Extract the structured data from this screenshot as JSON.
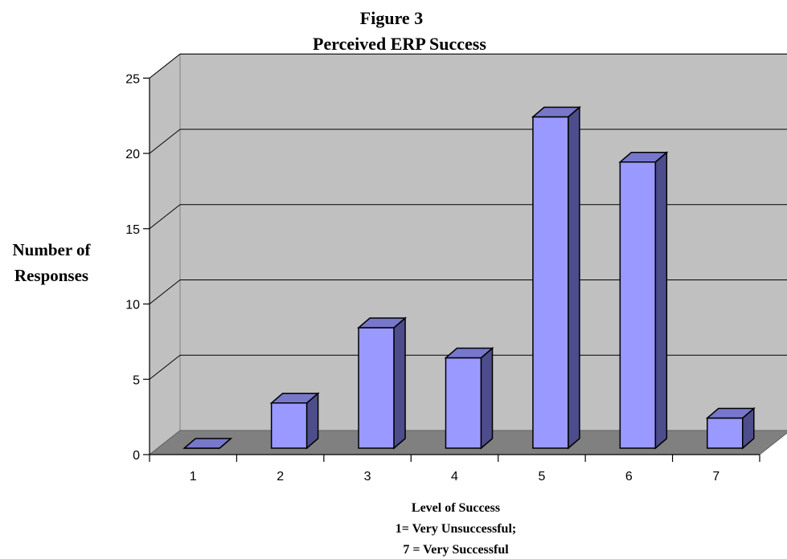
{
  "chart_data": {
    "type": "bar",
    "title": "Figure 3",
    "subtitle": "Perceived ERP Success",
    "ylabel": [
      "Number of",
      "Responses"
    ],
    "xlabel": [
      "Level of Success",
      "1= Very Unsuccessful;",
      "7 = Very Successful"
    ],
    "categories": [
      "1",
      "2",
      "3",
      "4",
      "5",
      "6",
      "7"
    ],
    "values": [
      0,
      3,
      8,
      6,
      22,
      19,
      2
    ],
    "ylim": [
      0,
      25
    ],
    "yticks": [
      "0",
      "5",
      "10",
      "15",
      "20",
      "25"
    ],
    "grid": true,
    "legend": "none",
    "colors": {
      "bar_front": "#9999ff",
      "bar_side": "#4d4d8c",
      "bar_top": "#7777cc",
      "wall": "#c0c0c0",
      "floor": "#808080",
      "outline": "#000000"
    }
  }
}
